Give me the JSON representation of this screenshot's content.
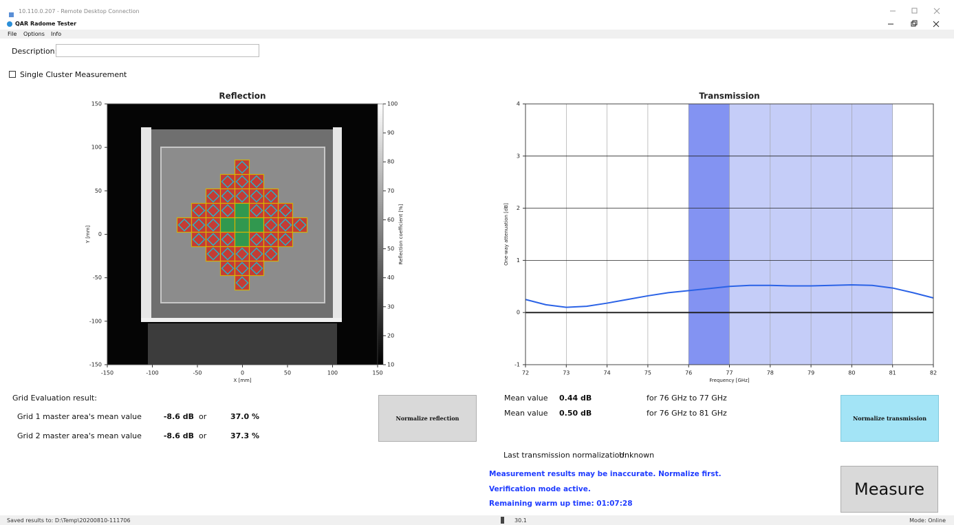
{
  "window": {
    "remote_title": "10.110.0.207 - Remote Desktop Connection",
    "app_title": "QAR Radome Tester"
  },
  "menu": [
    "File",
    "Options",
    "Info"
  ],
  "description_label": "Description:",
  "single_cluster_label": "Single Cluster Measurement",
  "chart_data": [
    {
      "type": "heatmap",
      "title": "Reflection",
      "x_label": "X [mm]",
      "y_label": "Y [mm]",
      "colorbar_label": "Reflection coefficient [%]",
      "xlim": [
        -150,
        150
      ],
      "xticks": [
        -150,
        -100,
        -50,
        0,
        50,
        100,
        150
      ],
      "ylim": [
        -150,
        150
      ],
      "yticks": [
        -150,
        -100,
        -50,
        0,
        50,
        100,
        150
      ],
      "zlim": [
        10,
        100
      ],
      "zticks": [
        10,
        20,
        30,
        40,
        50,
        60,
        70,
        80,
        90,
        100
      ]
    },
    {
      "type": "line",
      "title": "Transmission",
      "x_label": "Frequency [GHz]",
      "y_label": "One-way attenuation [dB]",
      "xlim": [
        72,
        82
      ],
      "xticks": [
        72,
        73,
        74,
        75,
        76,
        77,
        78,
        79,
        80,
        81,
        82
      ],
      "ylim": [
        -1,
        4
      ],
      "yticks": [
        -1,
        0,
        1,
        2,
        3,
        4
      ],
      "grid": true,
      "color": "#2a62e6",
      "x": [
        72,
        72.5,
        73,
        73.5,
        74,
        74.5,
        75,
        75.5,
        76,
        76.5,
        77,
        77.5,
        78,
        78.5,
        79,
        79.5,
        80,
        80.5,
        81,
        81.5,
        82
      ],
      "values": [
        0.25,
        0.15,
        0.1,
        0.12,
        0.18,
        0.25,
        0.32,
        0.38,
        0.42,
        0.46,
        0.5,
        0.52,
        0.52,
        0.51,
        0.51,
        0.52,
        0.53,
        0.52,
        0.47,
        0.38,
        0.28
      ],
      "bands": [
        {
          "from": 76,
          "to": 77,
          "color": "#8393f2"
        },
        {
          "from": 77,
          "to": 81,
          "color": "#c5cdf8"
        }
      ]
    }
  ],
  "grid_eval": {
    "title": "Grid Evaluation result:",
    "rows": [
      {
        "label": "Grid 1 master area's mean value",
        "db": "-8.6 dB",
        "or": "or",
        "percent": "37.0 %"
      },
      {
        "label": "Grid 2 master area's mean value",
        "db": "-8.6 dB",
        "or": "or",
        "percent": "37.3 %"
      }
    ]
  },
  "mean_values": [
    {
      "label": "Mean value",
      "value": "0.44 dB",
      "range": "for 76 GHz to 77 GHz"
    },
    {
      "label": "Mean value",
      "value": "0.50 dB",
      "range": "for 76 GHz to 81 GHz"
    }
  ],
  "buttons": {
    "normalize_reflection": "Normalize reflection",
    "normalize_transmission": "Normalize transmission",
    "measure": "Measure"
  },
  "normalization": {
    "label": "Last transmission normalization:",
    "value": "Unknown"
  },
  "messages": [
    "Measurement results may be inaccurate. Normalize first.",
    "Verification mode active.",
    "Remaining warm up time: 01:07:28"
  ],
  "status": {
    "saved": "Saved results to: D:\\Temp\\20200810-111706",
    "temperature": "30.1",
    "mode": "Mode: Online"
  }
}
